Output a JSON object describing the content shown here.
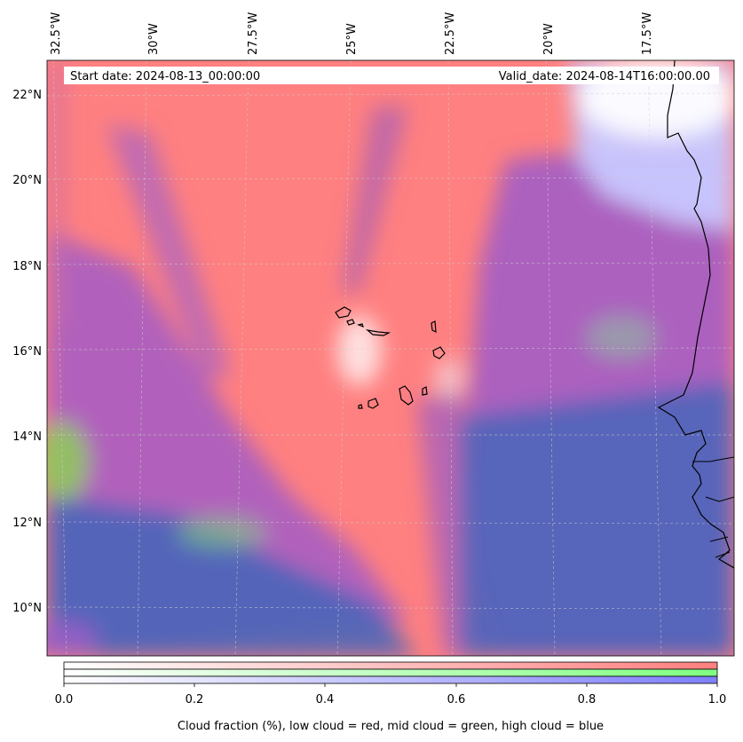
{
  "header": {
    "start_label": "Start date: 2024-08-13_00:00:00",
    "valid_label": "Valid_date: 2024-08-14T16:00:00.00"
  },
  "map": {
    "lon_ticks": [
      "32.5°W",
      "30°W",
      "27.5°W",
      "25°W",
      "22.5°W",
      "20°W",
      "17.5°W"
    ],
    "lat_ticks": [
      "22°N",
      "20°N",
      "18°N",
      "16°N",
      "14°N",
      "12°N",
      "10°N"
    ],
    "background_colors": {
      "low_cloud": "#ff8080",
      "mid_cloud": "#90e890",
      "high_cloud": "#7f7fff",
      "mixed_low_high": "#a55fc8",
      "all_cloud": "#4a66b8",
      "clear": "#ffffff"
    }
  },
  "colorbar": {
    "ticks": [
      "0.0",
      "0.2",
      "0.4",
      "0.6",
      "0.8",
      "1.0"
    ],
    "label": "Cloud fraction (%), low cloud = red, mid cloud = green, high cloud = blue",
    "colors": {
      "low": "#ff7f7f",
      "mid": "#7fff7f",
      "high": "#7f7fff"
    }
  }
}
